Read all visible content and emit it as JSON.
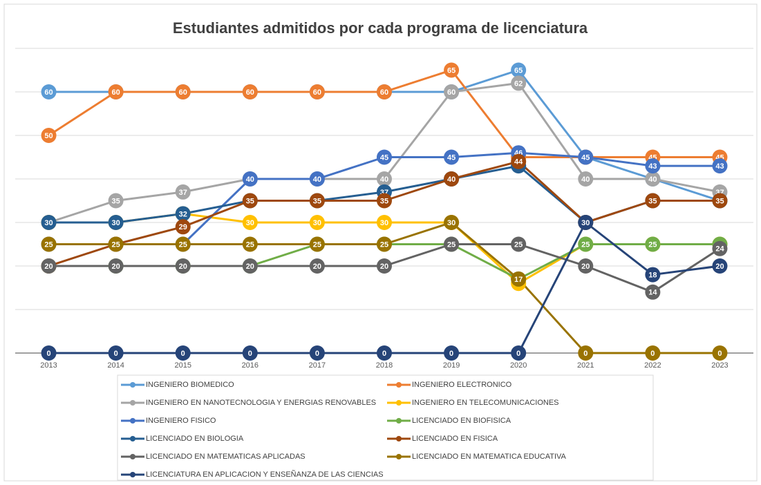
{
  "chart_data": {
    "type": "line",
    "title": "Estudiantes admitidos por cada programa de licenciatura",
    "categories": [
      "2013",
      "2014",
      "2015",
      "2016",
      "2017",
      "2018",
      "2019",
      "2020",
      "2021",
      "2022",
      "2023"
    ],
    "ylim": [
      0,
      70
    ],
    "yticks": [
      0,
      10,
      20,
      30,
      40,
      50,
      60,
      70
    ],
    "grid": true,
    "legend": "bottom",
    "series": [
      {
        "name": "INGENIERO BIOMEDICO",
        "color": "#5b9bd5",
        "values": [
          60,
          60,
          60,
          60,
          60,
          60,
          60,
          65,
          45,
          40,
          35
        ]
      },
      {
        "name": "INGENIERO ELECTRONICO",
        "color": "#ed7d31",
        "values": [
          50,
          60,
          60,
          60,
          60,
          60,
          65,
          45,
          45,
          45,
          45
        ]
      },
      {
        "name": "INGENIERO EN NANOTECNOLOGIA Y ENERGIAS RENOVABLES",
        "color": "#a5a5a5",
        "values": [
          30,
          35,
          37,
          40,
          40,
          40,
          60,
          62,
          40,
          40,
          37
        ]
      },
      {
        "name": "INGENIERO EN TELECOMUNICACIONES",
        "color": "#ffc000",
        "values": [
          30,
          30,
          32,
          30,
          30,
          30,
          30,
          16,
          25,
          25,
          25
        ]
      },
      {
        "name": "INGENIERO FISICO",
        "color": "#4472c4",
        "values": [
          25,
          25,
          25,
          40,
          40,
          45,
          45,
          46,
          45,
          43,
          43
        ]
      },
      {
        "name": "LICENCIADO EN BIOFISICA",
        "color": "#70ad47",
        "values": [
          20,
          20,
          20,
          20,
          25,
          25,
          25,
          17,
          25,
          25,
          25
        ]
      },
      {
        "name": "LICENCIADO EN BIOLOGIA",
        "color": "#255e91",
        "values": [
          30,
          30,
          32,
          35,
          35,
          37,
          40,
          43,
          30,
          35,
          35
        ]
      },
      {
        "name": "LICENCIADO EN FISICA",
        "color": "#9e480e",
        "values": [
          20,
          25,
          29,
          35,
          35,
          35,
          40,
          44,
          30,
          35,
          35
        ]
      },
      {
        "name": "LICENCIADO EN MATEMATICAS APLICADAS",
        "color": "#636363",
        "values": [
          20,
          20,
          20,
          20,
          20,
          20,
          25,
          25,
          20,
          14,
          24
        ]
      },
      {
        "name": "LICENCIADO EN MATEMATICA EDUCATIVA",
        "color": "#997300",
        "values": [
          25,
          25,
          25,
          25,
          25,
          25,
          30,
          17,
          0,
          0,
          0
        ]
      },
      {
        "name": "LICENCIATURA EN APLICACION Y ENSEÑANZA DE LAS CIENCIAS",
        "color": "#264478",
        "values": [
          0,
          0,
          0,
          0,
          0,
          0,
          0,
          0,
          30,
          18,
          20
        ]
      }
    ]
  }
}
